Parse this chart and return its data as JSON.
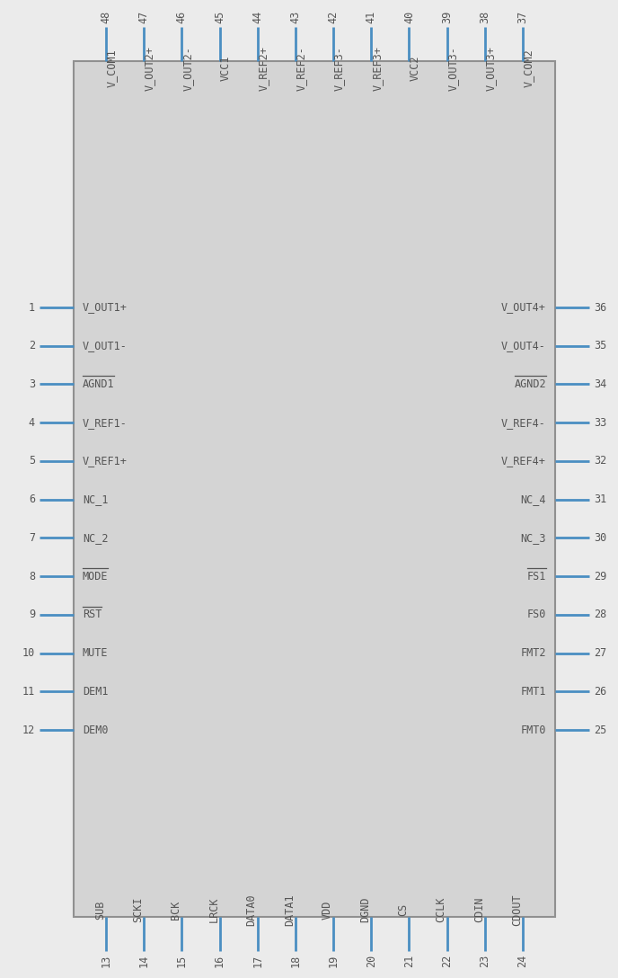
{
  "body_color": "#d4d4d4",
  "body_edge_color": "#909090",
  "pin_color": "#4a8ec2",
  "text_color": "#555555",
  "bg_color": "#ebebeb",
  "left_pins": [
    {
      "num": 1,
      "name": "V_OUT1+",
      "overline": false
    },
    {
      "num": 2,
      "name": "V_OUT1-",
      "overline": false
    },
    {
      "num": 3,
      "name": "AGND1",
      "overline": true
    },
    {
      "num": 4,
      "name": "V_REF1-",
      "overline": false
    },
    {
      "num": 5,
      "name": "V_REF1+",
      "overline": false
    },
    {
      "num": 6,
      "name": "NC_1",
      "overline": false
    },
    {
      "num": 7,
      "name": "NC_2",
      "overline": false
    },
    {
      "num": 8,
      "name": "MODE",
      "overline": true
    },
    {
      "num": 9,
      "name": "RST",
      "overline": true
    },
    {
      "num": 10,
      "name": "MUTE",
      "overline": false
    },
    {
      "num": 11,
      "name": "DEM1",
      "overline": false
    },
    {
      "num": 12,
      "name": "DEM0",
      "overline": false
    }
  ],
  "right_pins": [
    {
      "num": 36,
      "name": "V_OUT4+",
      "overline": false
    },
    {
      "num": 35,
      "name": "V_OUT4-",
      "overline": false
    },
    {
      "num": 34,
      "name": "AGND2",
      "overline": true
    },
    {
      "num": 33,
      "name": "V_REF4-",
      "overline": false
    },
    {
      "num": 32,
      "name": "V_REF4+",
      "overline": false
    },
    {
      "num": 31,
      "name": "NC_4",
      "overline": false
    },
    {
      "num": 30,
      "name": "NC_3",
      "overline": false
    },
    {
      "num": 29,
      "name": "FS1",
      "overline": true
    },
    {
      "num": 28,
      "name": "FS0",
      "overline": false
    },
    {
      "num": 27,
      "name": "FMT2",
      "overline": false
    },
    {
      "num": 26,
      "name": "FMT1",
      "overline": false
    },
    {
      "num": 25,
      "name": "FMT0",
      "overline": false
    }
  ],
  "top_pins": [
    {
      "num": 48,
      "name": "V_COM1",
      "overline": false
    },
    {
      "num": 47,
      "name": "V_OUT2+",
      "overline": false
    },
    {
      "num": 46,
      "name": "V_OUT2-",
      "overline": false
    },
    {
      "num": 45,
      "name": "VCC1",
      "overline": false
    },
    {
      "num": 44,
      "name": "V_REF2+",
      "overline": false
    },
    {
      "num": 43,
      "name": "V_REF2-",
      "overline": false
    },
    {
      "num": 42,
      "name": "V_REF3-",
      "overline": false
    },
    {
      "num": 41,
      "name": "V_REF3+",
      "overline": false
    },
    {
      "num": 40,
      "name": "VCC2",
      "overline": false
    },
    {
      "num": 39,
      "name": "V_OUT3-",
      "overline": false
    },
    {
      "num": 38,
      "name": "V_OUT3+",
      "overline": false
    },
    {
      "num": 37,
      "name": "V_COM2",
      "overline": false
    }
  ],
  "bottom_pins": [
    {
      "num": 13,
      "name": "SUB",
      "overline": false
    },
    {
      "num": 14,
      "name": "SCKI",
      "overline": false
    },
    {
      "num": 15,
      "name": "BCK",
      "overline": false
    },
    {
      "num": 16,
      "name": "LRCK",
      "overline": false
    },
    {
      "num": 17,
      "name": "DATA0",
      "overline": false
    },
    {
      "num": 18,
      "name": "DATA1",
      "overline": false
    },
    {
      "num": 19,
      "name": "VDD",
      "overline": false
    },
    {
      "num": 20,
      "name": "DGND",
      "overline": true
    },
    {
      "num": 21,
      "name": "CS",
      "overline": true
    },
    {
      "num": 22,
      "name": "CCLK",
      "overline": false
    },
    {
      "num": 23,
      "name": "CDIN",
      "overline": false
    },
    {
      "num": 24,
      "name": "CDOUT",
      "overline": false
    }
  ]
}
